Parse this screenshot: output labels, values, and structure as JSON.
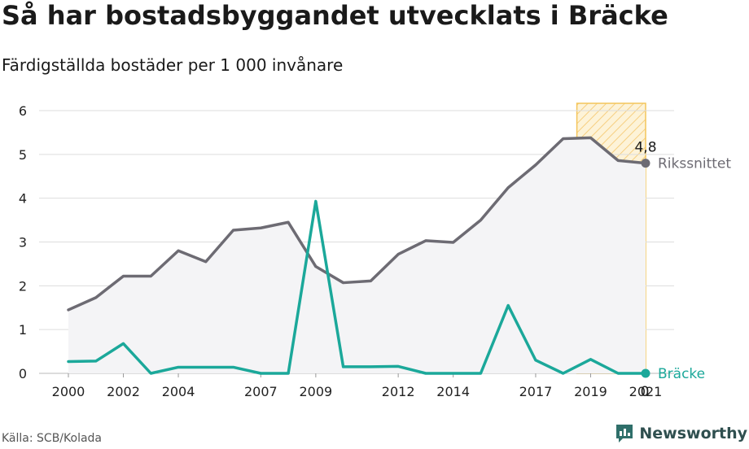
{
  "title": "Så har bostadsbyggandet utvecklats i Bräcke",
  "subtitle": "Färdigställda bostäder per 1 000 invånare",
  "source": "Källa: SCB/Kolada",
  "brand": "Newsworthy",
  "colors": {
    "riket": "#6d6b73",
    "kommun": "#1ba89a",
    "highlight_fill": "#fbe7b5",
    "highlight_stroke": "#f4c55a",
    "grid": "#dddddd",
    "area": "#f4f4f6"
  },
  "chart_data": {
    "type": "line",
    "x": [
      2000,
      2001,
      2002,
      2003,
      2004,
      2005,
      2006,
      2007,
      2008,
      2009,
      2010,
      2011,
      2012,
      2013,
      2014,
      2015,
      2016,
      2017,
      2018,
      2019,
      2020,
      2021
    ],
    "xticks": [
      2000,
      2002,
      2004,
      2007,
      2009,
      2012,
      2014,
      2017,
      2019,
      2021
    ],
    "yticks": [
      0,
      1,
      2,
      3,
      4,
      5,
      6
    ],
    "ylim": [
      0,
      6
    ],
    "highlight_range": [
      2018.5,
      2021
    ],
    "series": [
      {
        "name": "Rikssnittet",
        "key": "riket",
        "values": [
          1.45,
          1.73,
          2.22,
          2.22,
          2.8,
          2.55,
          3.27,
          3.32,
          3.45,
          2.44,
          2.07,
          2.11,
          2.72,
          3.03,
          2.99,
          3.5,
          4.24,
          4.76,
          5.36,
          5.38,
          4.86,
          4.8
        ],
        "end_label": "4,8"
      },
      {
        "name": "Bräcke",
        "key": "kommun",
        "values": [
          0.27,
          0.28,
          0.68,
          0.0,
          0.14,
          0.14,
          0.14,
          0.0,
          0.0,
          3.93,
          0.15,
          0.15,
          0.16,
          0.0,
          0.0,
          0.0,
          1.55,
          0.3,
          0.0,
          0.32,
          0.0,
          0.0
        ],
        "end_label": "0"
      }
    ]
  }
}
